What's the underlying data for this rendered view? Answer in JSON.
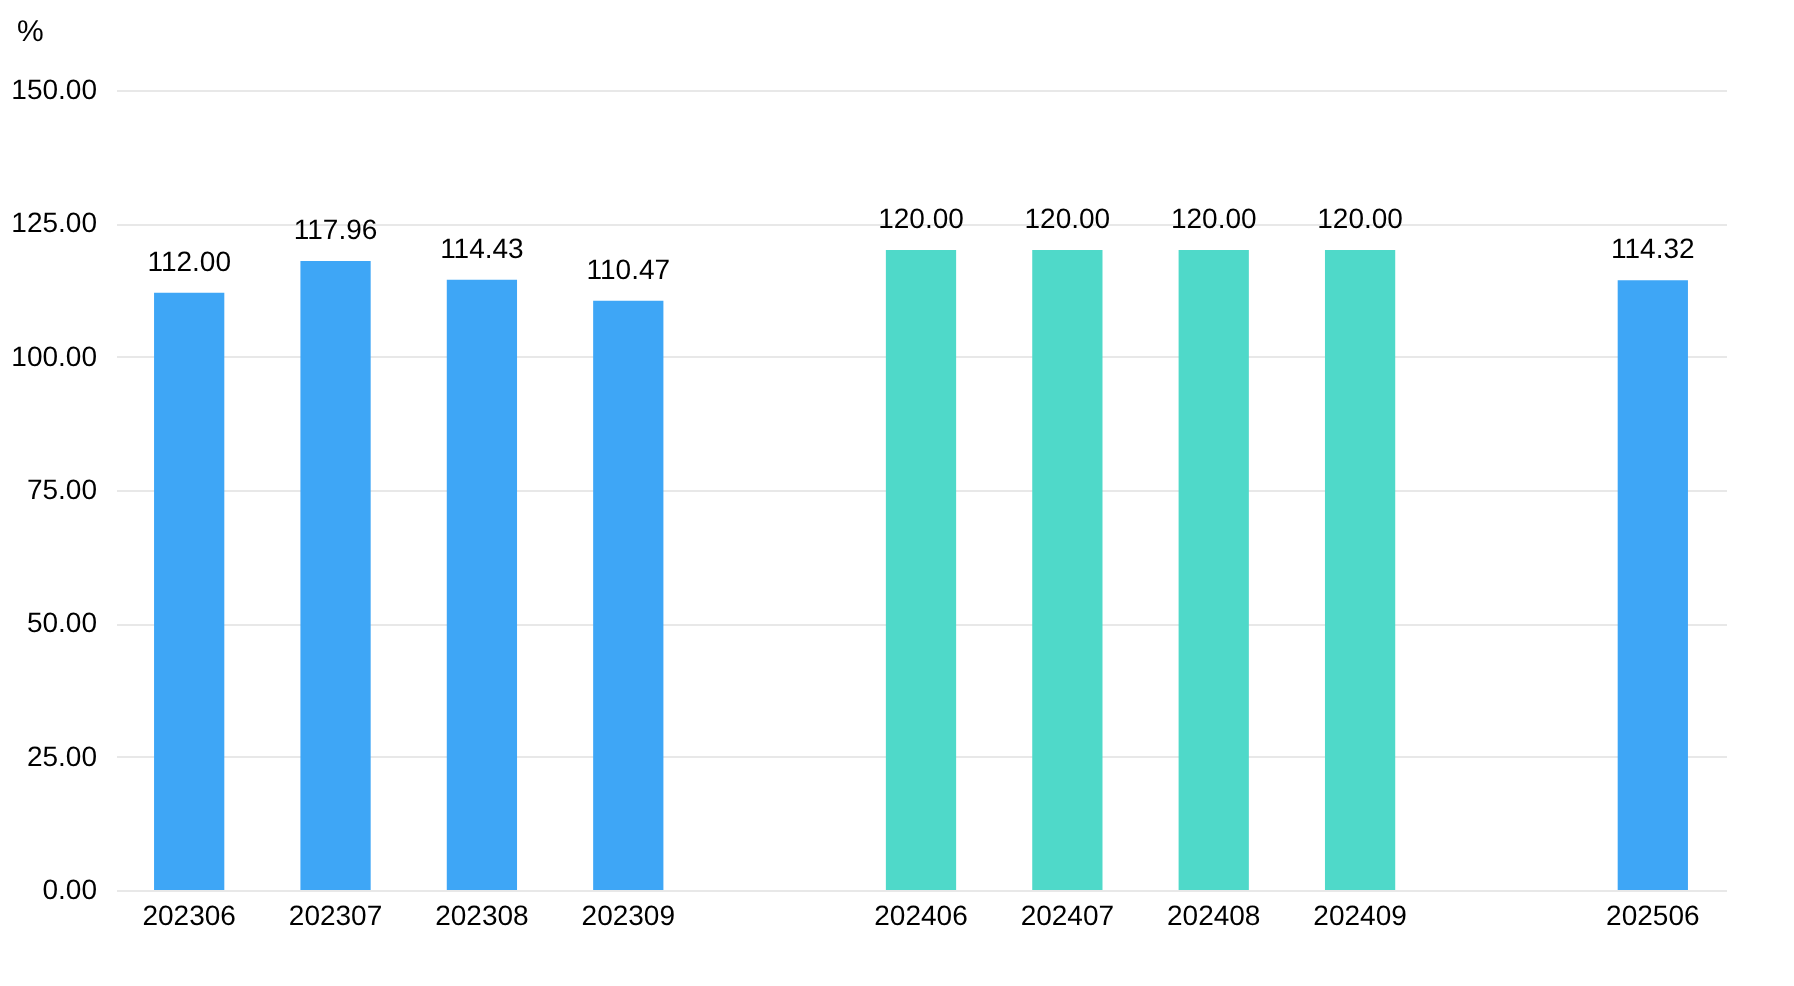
{
  "chart_data": {
    "type": "bar",
    "ylabel": "%",
    "categories": [
      "202306",
      "202307",
      "202308",
      "202309",
      null,
      "202406",
      "202407",
      "202408",
      "202409",
      null,
      "202506"
    ],
    "values": [
      112.0,
      117.96,
      114.43,
      110.47,
      null,
      120.0,
      120.0,
      120.0,
      120.0,
      null,
      114.32
    ],
    "value_labels": [
      "112.00",
      "117.96",
      "114.43",
      "110.47",
      null,
      "120.00",
      "120.00",
      "120.00",
      "120.00",
      null,
      "114.32"
    ],
    "colors": [
      "#3ea6f6",
      "#3ea6f6",
      "#3ea6f6",
      "#3ea6f6",
      null,
      "#4fd9c9",
      "#4fd9c9",
      "#4fd9c9",
      "#4fd9c9",
      null,
      "#3ea6f6"
    ],
    "ylim": [
      0,
      150
    ],
    "yticks": [
      {
        "value": 0,
        "label": "0.00"
      },
      {
        "value": 25,
        "label": "25.00"
      },
      {
        "value": 50,
        "label": "50.00"
      },
      {
        "value": 75,
        "label": "75.00"
      },
      {
        "value": 100,
        "label": "100.00"
      },
      {
        "value": 125,
        "label": "125.00"
      },
      {
        "value": 150,
        "label": "150.00"
      }
    ],
    "grid": "y"
  }
}
